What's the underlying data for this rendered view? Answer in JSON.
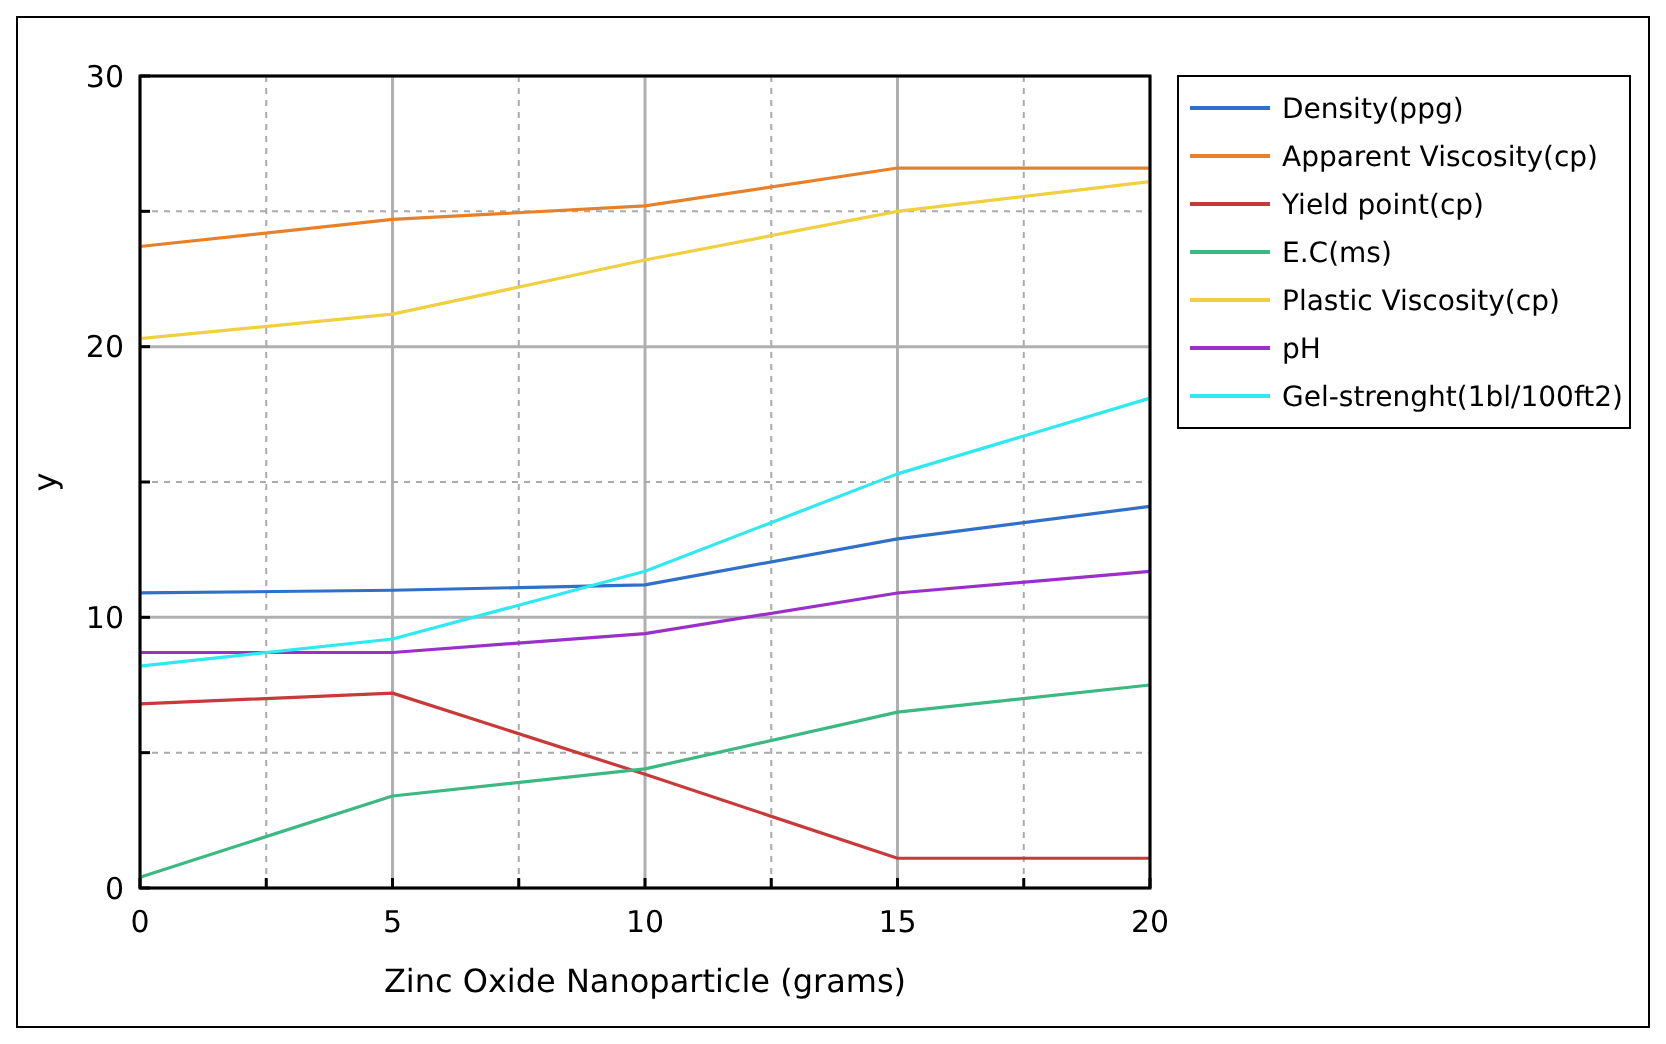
{
  "chart_data": {
    "type": "line",
    "xlabel": "Zinc Oxide Nanoparticle (grams)",
    "ylabel": "y",
    "x": [
      0,
      5,
      10,
      15,
      20
    ],
    "xlim": [
      0,
      20
    ],
    "ylim": [
      0,
      30
    ],
    "xticks": [
      0,
      {
        "value": 2.5,
        "label": null
      },
      5,
      {
        "value": 7.5,
        "label": null
      },
      10,
      {
        "value": 12.5,
        "label": null
      },
      15,
      {
        "value": 17.5,
        "label": null
      },
      20
    ],
    "yticks": [
      0,
      {
        "value": 5,
        "label": null
      },
      10,
      {
        "value": 15,
        "label": null
      },
      20,
      {
        "value": 25,
        "label": null
      },
      30
    ],
    "grid": true,
    "legend": "top right",
    "marker": "none",
    "line_style": "solid",
    "series": [
      {
        "name": "Density(ppg)",
        "color": "#3070c8",
        "values": [
          10.9,
          11.0,
          11.2,
          12.9,
          14.1
        ]
      },
      {
        "name": "Apparent Viscosity(cp)",
        "color": "#e8802a",
        "values": [
          23.7,
          24.7,
          25.2,
          26.6,
          26.6
        ]
      },
      {
        "name": "Yield point(cp)",
        "color": "#c83a3a",
        "values": [
          6.8,
          7.2,
          4.2,
          1.1,
          1.1
        ]
      },
      {
        "name": "E.C(ms)",
        "color": "#3cb882",
        "values": [
          0.4,
          3.4,
          4.4,
          6.5,
          7.5
        ]
      },
      {
        "name": "Plastic Viscosity(cp)",
        "color": "#f0d040",
        "values": [
          20.3,
          21.2,
          23.2,
          25.0,
          26.1
        ]
      },
      {
        "name": "pH",
        "color": "#9a30c8",
        "values": [
          8.7,
          8.7,
          9.4,
          10.9,
          11.7
        ]
      },
      {
        "name": "Gel-strenght(1bl/100ft2)",
        "color": "#30e8f0",
        "values": [
          8.2,
          9.2,
          11.7,
          15.3,
          18.1
        ]
      }
    ]
  }
}
